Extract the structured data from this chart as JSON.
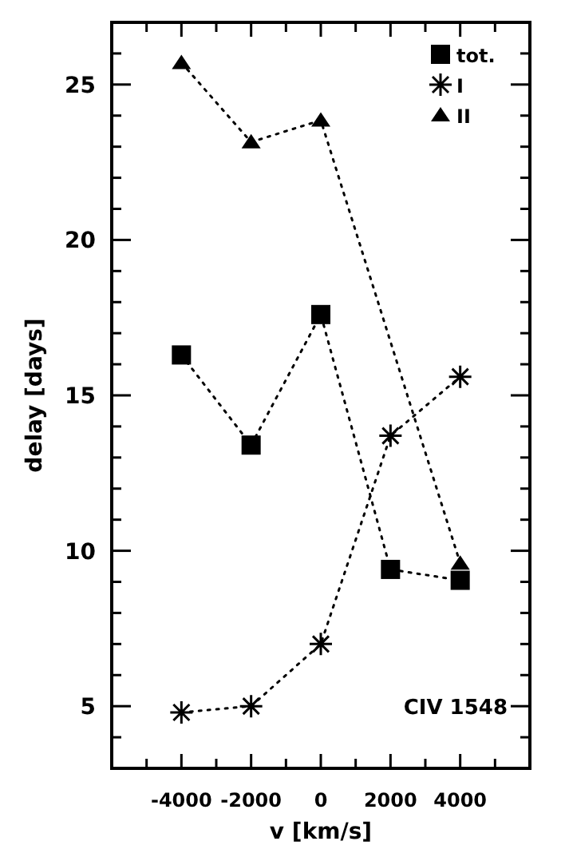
{
  "chart_data": {
    "type": "line",
    "xlabel": "v [km/s]",
    "ylabel": "delay [days]",
    "xlim": [
      -6000,
      6000
    ],
    "ylim": [
      3,
      27
    ],
    "xticks": [
      {
        "value": -5000,
        "label": null
      },
      -4000,
      {
        "value": -3000,
        "label": null
      },
      -2000,
      {
        "value": -1000,
        "label": null
      },
      0,
      {
        "value": 1000,
        "label": null
      },
      2000,
      {
        "value": 3000,
        "label": null
      },
      4000,
      {
        "value": 5000,
        "label": null
      }
    ],
    "yticks": [
      {
        "value": 4,
        "label": null
      },
      5,
      {
        "value": 6,
        "label": null
      },
      {
        "value": 7,
        "label": null
      },
      {
        "value": 8,
        "label": null
      },
      {
        "value": 9,
        "label": null
      },
      10,
      {
        "value": 11,
        "label": null
      },
      {
        "value": 12,
        "label": null
      },
      {
        "value": 13,
        "label": null
      },
      {
        "value": 14,
        "label": null
      },
      15,
      {
        "value": 16,
        "label": null
      },
      {
        "value": 17,
        "label": null
      },
      {
        "value": 18,
        "label": null
      },
      {
        "value": 19,
        "label": null
      },
      20,
      {
        "value": 21,
        "label": null
      },
      {
        "value": 22,
        "label": null
      },
      {
        "value": 23,
        "label": null
      },
      {
        "value": 24,
        "label": null
      },
      25,
      {
        "value": 26,
        "label": null
      }
    ],
    "x": [
      -4000,
      -2000,
      0,
      2000,
      4000
    ],
    "series": [
      {
        "name": "tot.",
        "color": "#000000",
        "marker": "square",
        "values": [
          16.3,
          13.4,
          17.6,
          9.4,
          9.05
        ]
      },
      {
        "name": "I",
        "color": "#000000",
        "marker": "cross",
        "values": [
          4.8,
          5.0,
          7.0,
          13.7,
          15.6
        ]
      },
      {
        "name": "II",
        "color": "#000000",
        "marker": "triangle",
        "x": [
          -4000,
          -2000,
          0,
          4000
        ],
        "values": [
          25.7,
          23.15,
          23.85,
          9.6
        ]
      }
    ],
    "line_style": "dotted",
    "legend": "top right",
    "grid": false,
    "annotations": [
      "CIV 1548"
    ]
  }
}
